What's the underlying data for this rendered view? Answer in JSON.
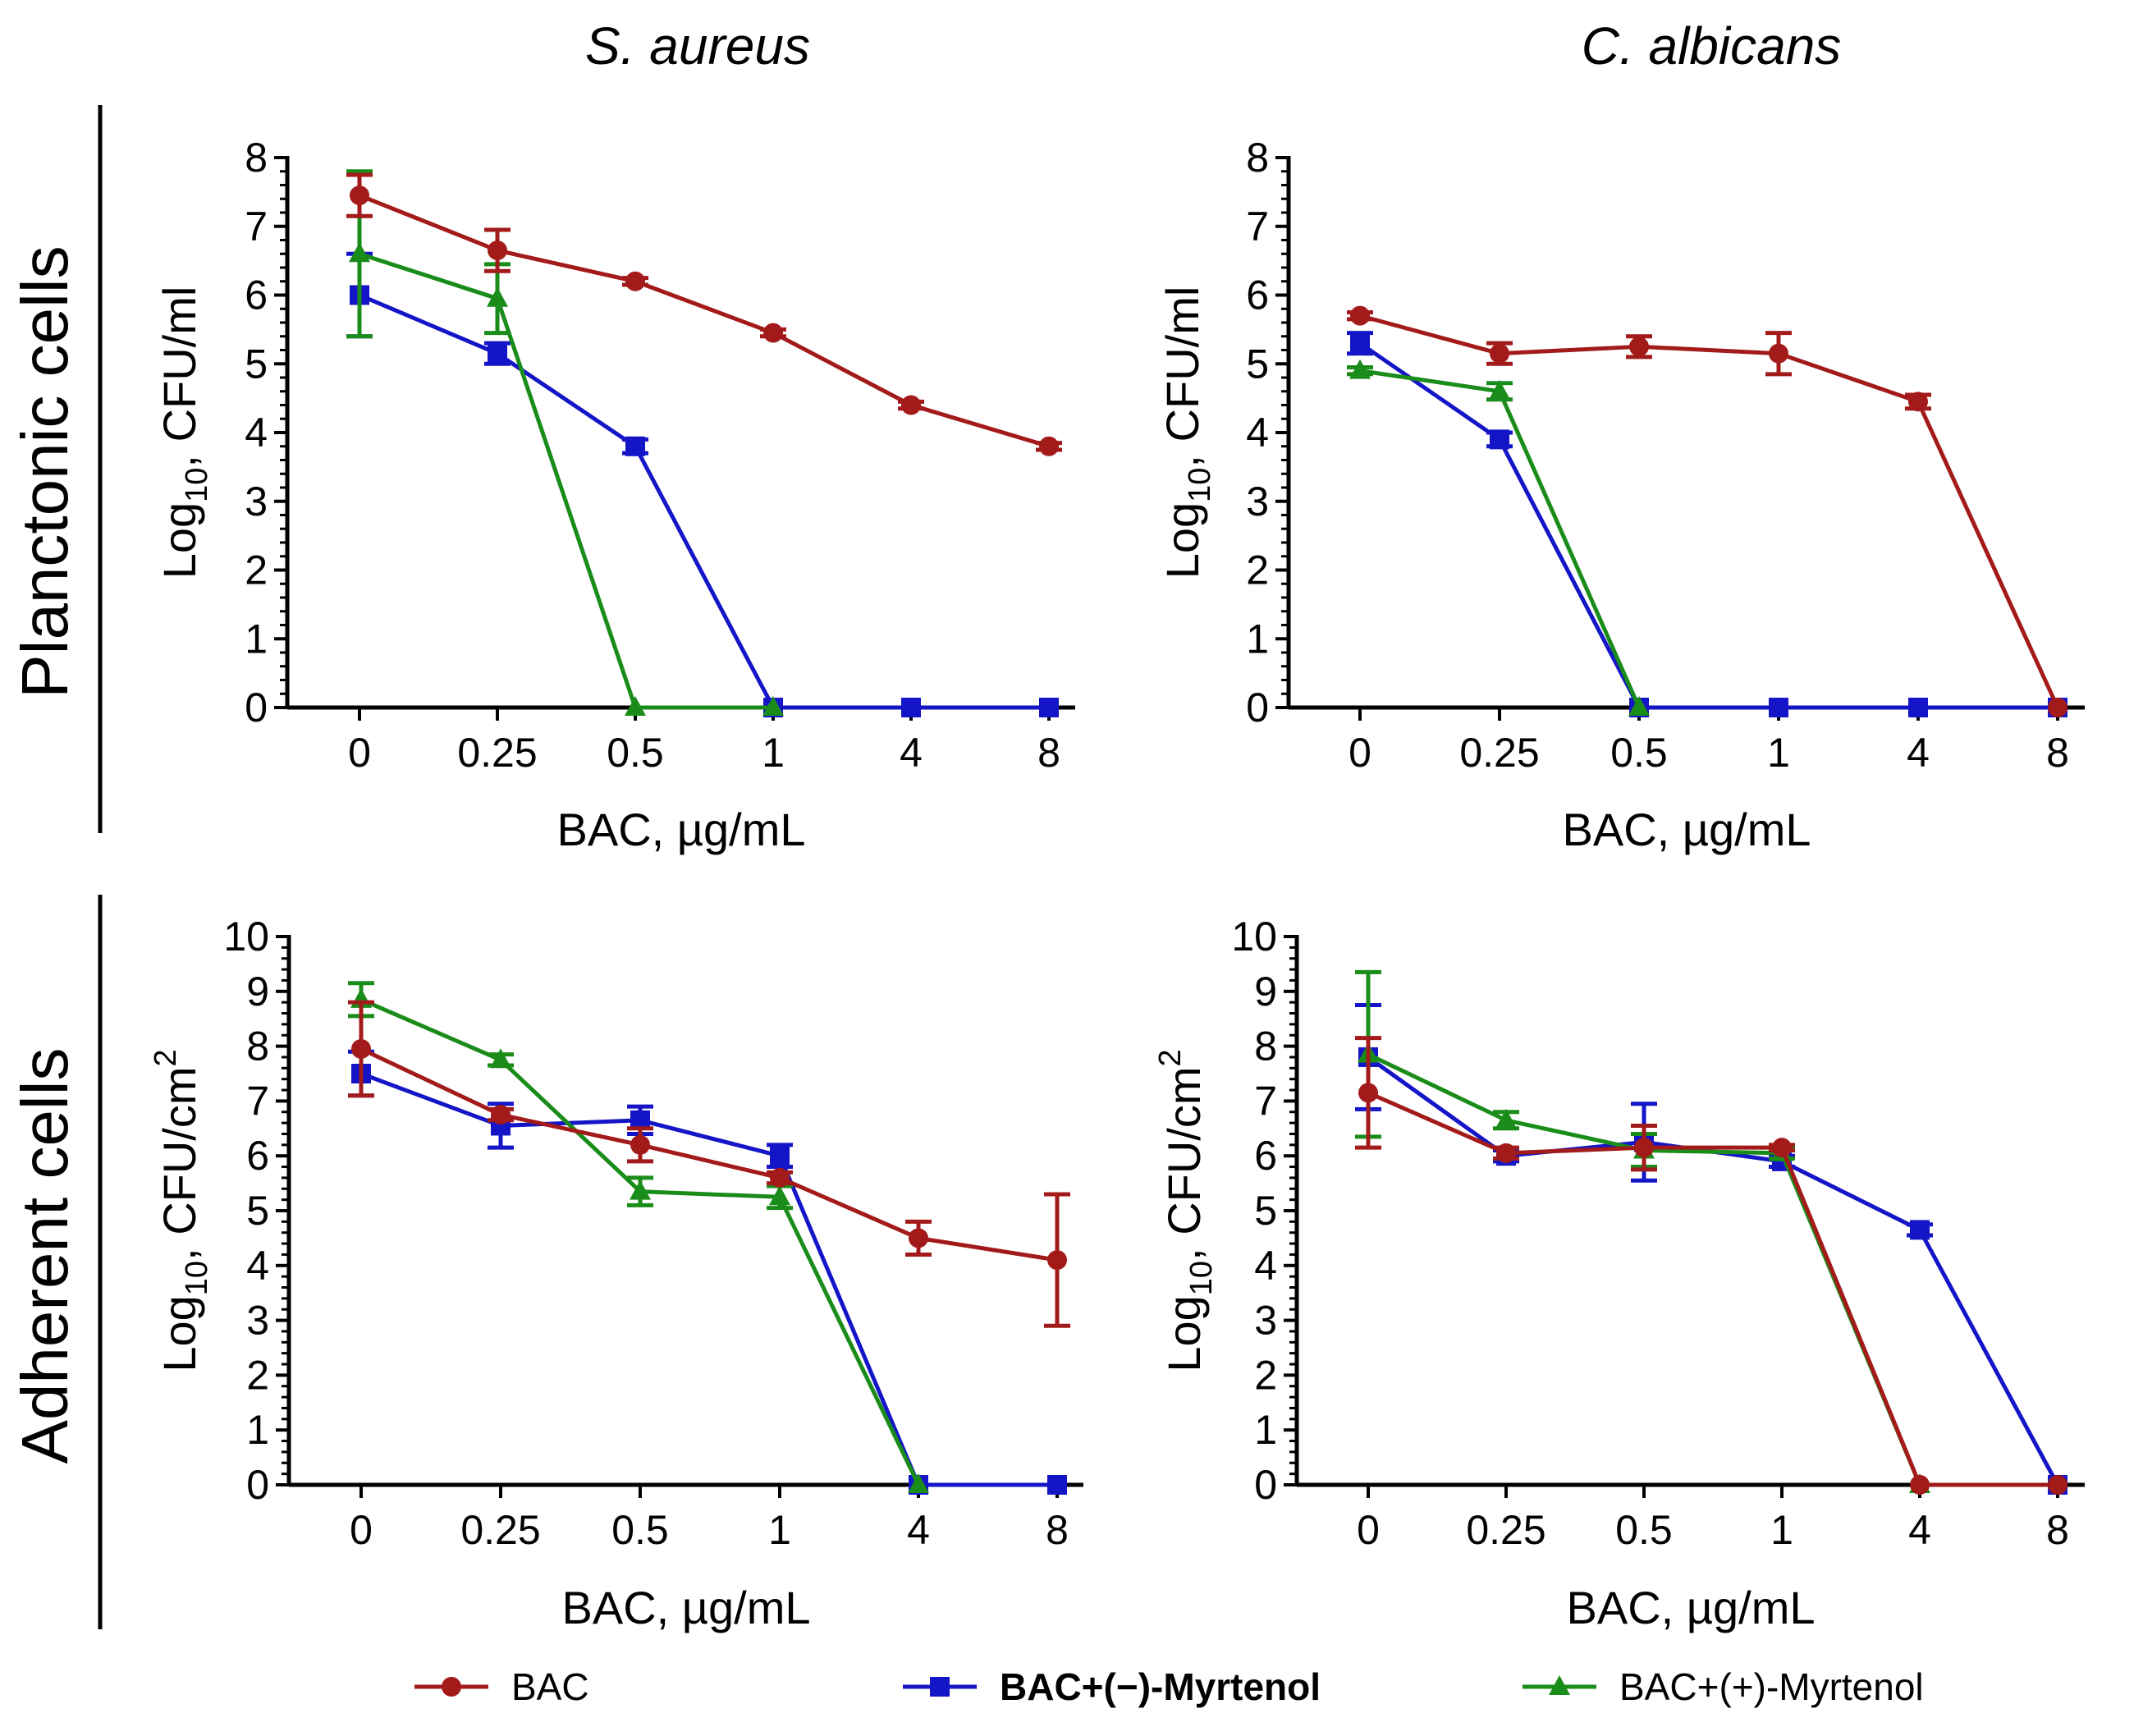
{
  "column_titles": [
    "S. aureus",
    "C. albicans"
  ],
  "row_labels": [
    "Planctonic cells",
    "Adherent cells"
  ],
  "legend": [
    {
      "label": "BAC",
      "color": "#A31A1A",
      "marker": "circle",
      "bold": false
    },
    {
      "label": "BAC+(−)-Myrtenol",
      "color": "#1515C8",
      "marker": "square",
      "bold": true
    },
    {
      "label": "BAC+(+)-Myrtenol",
      "color": "#1A8C1A",
      "marker": "triangle",
      "bold": false
    }
  ],
  "chart_data": [
    {
      "type": "line",
      "panel": "S. aureus / Planctonic cells",
      "title": "S. aureus",
      "xlabel": "BAC, µg/mL",
      "ylabel": {
        "prefix": "Log",
        "sub": "10",
        "mid": ",  CFU/ml",
        "sup": ""
      },
      "categories": [
        "0",
        "0.25",
        "0.5",
        "1",
        "4",
        "8"
      ],
      "ylim": [
        0,
        8
      ],
      "yticks": [
        "0",
        "1",
        "2",
        "3",
        "4",
        "5",
        "6",
        "7",
        "8"
      ],
      "series": [
        {
          "name": "BAC+(−)-Myrtenol",
          "values": [
            6.0,
            5.15,
            3.8,
            0,
            0,
            0
          ],
          "errors": [
            0.6,
            0.15,
            0.1,
            0,
            0,
            0
          ]
        },
        {
          "name": "BAC+(+)-Myrtenol",
          "values": [
            6.6,
            5.95,
            0,
            0,
            null,
            null
          ],
          "errors": [
            1.2,
            0.5,
            0,
            0,
            0,
            0
          ]
        },
        {
          "name": "BAC",
          "values": [
            7.45,
            6.65,
            6.2,
            5.45,
            4.4,
            3.8
          ],
          "errors": [
            0.3,
            0.3,
            0.05,
            0.05,
            0.05,
            0.05
          ]
        }
      ]
    },
    {
      "type": "line",
      "panel": "C. albicans / Planctonic cells",
      "title": "C. albicans",
      "xlabel": "BAC, µg/mL",
      "ylabel": {
        "prefix": "Log",
        "sub": "10",
        "mid": ",  CFU/ml",
        "sup": ""
      },
      "categories": [
        "0",
        "0.25",
        "0.5",
        "1",
        "4",
        "8"
      ],
      "ylim": [
        0,
        8
      ],
      "yticks": [
        "0",
        "1",
        "2",
        "3",
        "4",
        "5",
        "6",
        "7",
        "8"
      ],
      "series": [
        {
          "name": "BAC+(−)-Myrtenol",
          "values": [
            5.3,
            3.9,
            0,
            0,
            0,
            0
          ],
          "errors": [
            0.15,
            0.1,
            0,
            0,
            0,
            0
          ]
        },
        {
          "name": "BAC+(+)-Myrtenol",
          "values": [
            4.9,
            4.6,
            0,
            null,
            null,
            null
          ],
          "errors": [
            0.05,
            0.12,
            0,
            0,
            0,
            0
          ]
        },
        {
          "name": "BAC",
          "values": [
            5.7,
            5.15,
            5.25,
            5.15,
            4.45,
            0
          ],
          "errors": [
            0.05,
            0.15,
            0.15,
            0.3,
            0.1,
            0
          ]
        }
      ]
    },
    {
      "type": "line",
      "panel": "S. aureus / Adherent cells",
      "title": "S. aureus",
      "xlabel": "BAC, µg/mL",
      "ylabel": {
        "prefix": "Log",
        "sub": "10",
        "mid": ",  CFU/cm",
        "sup": "2"
      },
      "categories": [
        "0",
        "0.25",
        "0.5",
        "1",
        "4",
        "8"
      ],
      "ylim": [
        0,
        10
      ],
      "yticks": [
        "0",
        "1",
        "2",
        "3",
        "4",
        "5",
        "6",
        "7",
        "8",
        "9",
        "10"
      ],
      "series": [
        {
          "name": "BAC+(−)-Myrtenol",
          "values": [
            7.5,
            6.55,
            6.65,
            6.0,
            0,
            0
          ],
          "errors": [
            0.4,
            0.4,
            0.25,
            0.2,
            0,
            0
          ]
        },
        {
          "name": "BAC+(+)-Myrtenol",
          "values": [
            8.85,
            7.75,
            5.35,
            5.25,
            0,
            null
          ],
          "errors": [
            0.3,
            0.1,
            0.25,
            0.2,
            0,
            0
          ]
        },
        {
          "name": "BAC",
          "values": [
            7.95,
            6.75,
            6.2,
            5.6,
            4.5,
            4.1
          ],
          "errors": [
            0.85,
            0.1,
            0.3,
            0.1,
            0.3,
            1.2
          ]
        }
      ]
    },
    {
      "type": "line",
      "panel": "C. albicans / Adherent cells",
      "title": "C. albicans",
      "xlabel": "BAC, µg/mL",
      "ylabel": {
        "prefix": "Log",
        "sub": "10",
        "mid": ",  CFU/cm",
        "sup": "2"
      },
      "categories": [
        "0",
        "0.25",
        "0.5",
        "1",
        "4",
        "8"
      ],
      "ylim": [
        0,
        10
      ],
      "yticks": [
        "0",
        "1",
        "2",
        "3",
        "4",
        "5",
        "6",
        "7",
        "8",
        "9",
        "10"
      ],
      "series": [
        {
          "name": "BAC+(−)-Myrtenol",
          "values": [
            7.8,
            6.0,
            6.25,
            5.9,
            4.65,
            0
          ],
          "errors": [
            0.95,
            0.1,
            0.7,
            0.1,
            0.1,
            0
          ]
        },
        {
          "name": "BAC+(+)-Myrtenol",
          "values": [
            7.85,
            6.65,
            6.1,
            6.05,
            0,
            null
          ],
          "errors": [
            1.5,
            0.15,
            0.3,
            0.1,
            0,
            0
          ]
        },
        {
          "name": "BAC",
          "values": [
            7.15,
            6.05,
            6.15,
            6.15,
            0,
            0
          ],
          "errors": [
            1.0,
            0.1,
            0.4,
            0.05,
            0,
            0
          ]
        }
      ]
    }
  ]
}
